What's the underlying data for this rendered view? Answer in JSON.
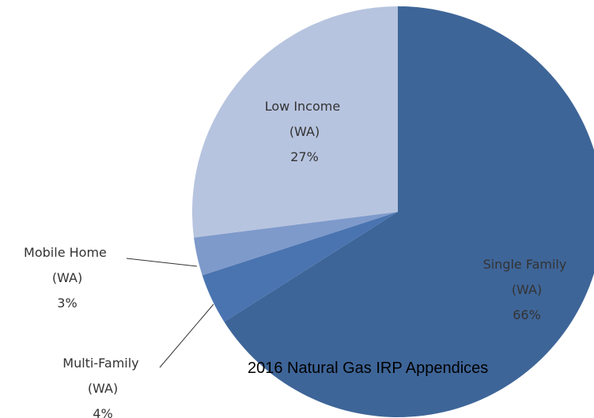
{
  "chart_data": {
    "type": "pie",
    "categories": [
      "Single Family (WA)",
      "Multi-Family (WA)",
      "Mobile Home (WA)",
      "Low Income (WA)"
    ],
    "values": [
      66,
      4,
      3,
      27
    ],
    "value_labels": [
      "66%",
      "4%",
      "3%",
      "27%"
    ],
    "colors": [
      "#3e6598",
      "#4a74b0",
      "#7e9acb",
      "#b7c4df"
    ],
    "footer": "2016 Natural Gas IRP Appendices"
  }
}
